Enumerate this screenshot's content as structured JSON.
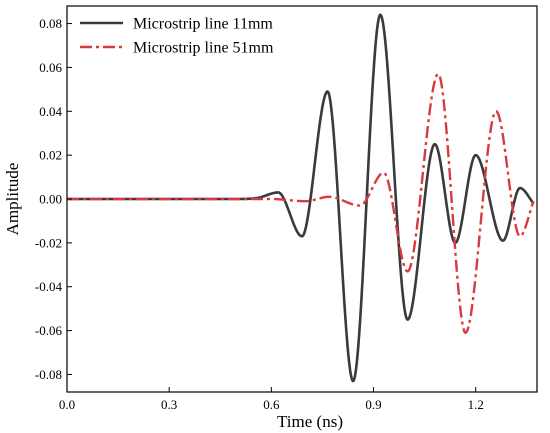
{
  "chart_data": {
    "type": "line",
    "title": "",
    "xlabel": "Time (ns)",
    "ylabel": "Amplitude",
    "xlim": [
      0.0,
      1.38
    ],
    "ylim": [
      -0.088,
      0.088
    ],
    "xticks": [
      0.0,
      0.3,
      0.6,
      0.9,
      1.2
    ],
    "xtick_labels": [
      "0.0",
      "0.3",
      "0.6",
      "0.9",
      "1.2"
    ],
    "yticks": [
      -0.08,
      -0.06,
      -0.04,
      -0.02,
      0.0,
      0.02,
      0.04,
      0.06,
      0.08
    ],
    "ytick_labels": [
      "-0.08",
      "-0.06",
      "-0.04",
      "-0.02",
      "0.00",
      "0.02",
      "0.04",
      "0.06",
      "0.08"
    ],
    "grid": false,
    "legend_position": "top-left",
    "series": [
      {
        "name": "Microstrip line 11mm",
        "color": "#3a3a3a",
        "dash": "solid",
        "x": [
          0.0,
          0.5,
          0.56,
          0.62,
          0.69,
          0.765,
          0.84,
          0.92,
          1.0,
          1.08,
          1.14,
          1.2,
          1.28,
          1.33,
          1.37
        ],
        "y": [
          0.0,
          0.0,
          0.0005,
          0.003,
          -0.017,
          0.049,
          -0.083,
          0.084,
          -0.055,
          0.025,
          -0.02,
          0.02,
          -0.019,
          0.005,
          -0.002
        ]
      },
      {
        "name": "Microstrip line 51mm",
        "color": "#d93a3a",
        "dash": "dashdot",
        "x": [
          0.0,
          0.6,
          0.7,
          0.77,
          0.86,
          0.93,
          1.0,
          1.09,
          1.17,
          1.26,
          1.33,
          1.37
        ],
        "y": [
          0.0,
          0.0,
          -0.001,
          0.001,
          -0.003,
          0.012,
          -0.033,
          0.057,
          -0.061,
          0.04,
          -0.017,
          -0.001
        ]
      }
    ]
  }
}
